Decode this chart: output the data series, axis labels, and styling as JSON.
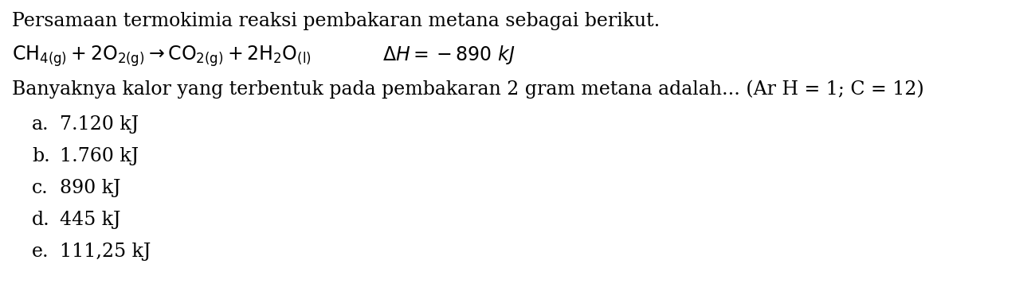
{
  "background_color": "#ffffff",
  "text_color": "#000000",
  "title_line": "Persamaan termokimia reaksi pembakaran metana sebagai berikut.",
  "question_line": "Banyaknya kalor yang terbentuk pada pembakaran 2 gram metana adalah... (Ar H = 1; C = 12)",
  "options": [
    {
      "label": "a.",
      "text": "7.120 kJ"
    },
    {
      "label": "b.",
      "text": "1.760 kJ"
    },
    {
      "label": "c.",
      "text": "890 kJ"
    },
    {
      "label": "d.",
      "text": "445 kJ"
    },
    {
      "label": "e.",
      "text": "111,25 kJ"
    }
  ],
  "font_size_main": 17,
  "font_size_eq": 17,
  "font_size_options": 17,
  "serif_font": "DejaVu Serif"
}
